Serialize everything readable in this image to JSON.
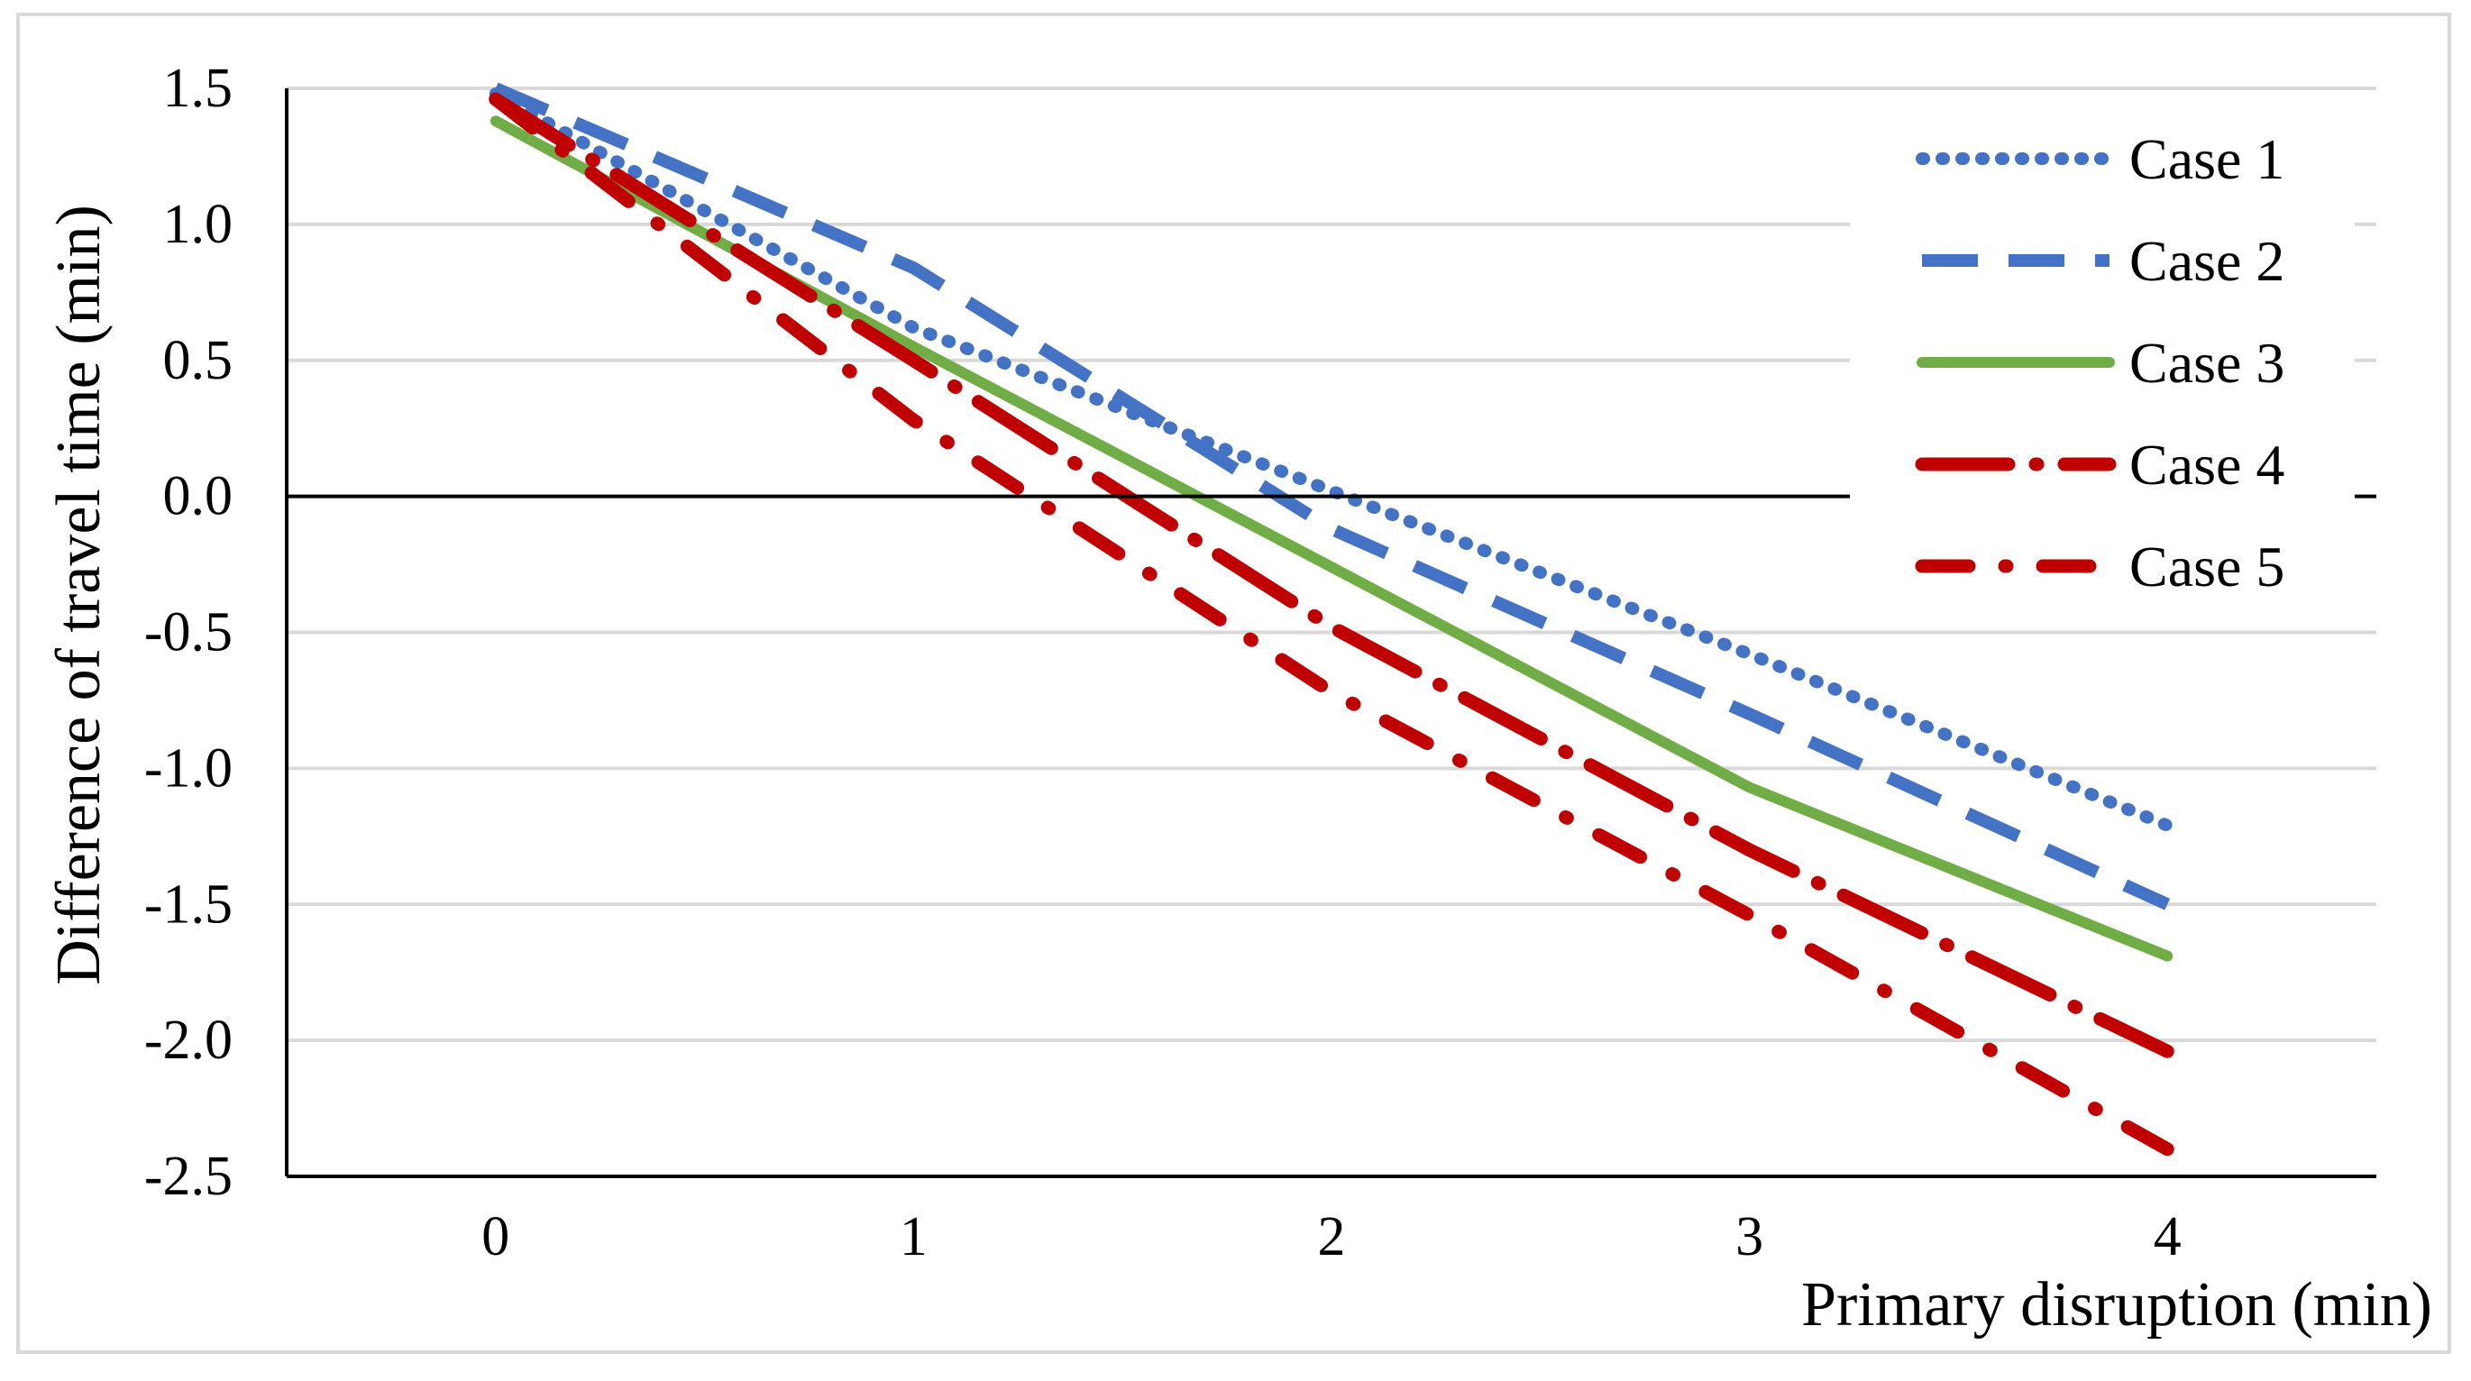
{
  "chart_data": {
    "type": "line",
    "title": "",
    "xlabel": "Primary disruption (min)",
    "ylabel": "Difference of travel time (min)",
    "x": [
      0,
      1,
      2,
      3,
      4
    ],
    "x_tick_labels": [
      "0",
      "1",
      "2",
      "3",
      "4"
    ],
    "ylim": [
      -2.5,
      1.5
    ],
    "y_ticks": [
      1.5,
      1.0,
      0.5,
      0.0,
      -0.5,
      -1.0,
      -1.5,
      -2.0,
      -2.5
    ],
    "y_tick_labels": [
      "1.5",
      "1.0",
      "0.5",
      "0.0",
      "-0.5",
      "-1.0",
      "-1.5",
      "-2.0",
      "-2.5"
    ],
    "grid": true,
    "legend_position": "top-right",
    "series": [
      {
        "name": "Case 1",
        "values": [
          1.48,
          0.62,
          0.02,
          -0.58,
          -1.21
        ],
        "color": "#4472c4",
        "dash": "dotted"
      },
      {
        "name": "Case 2",
        "values": [
          1.5,
          0.84,
          -0.12,
          -0.8,
          -1.5
        ],
        "color": "#4472c4",
        "dash": "dashed"
      },
      {
        "name": "Case 3",
        "values": [
          1.38,
          0.55,
          -0.26,
          -1.07,
          -1.69
        ],
        "color": "#70ad47",
        "dash": "solid"
      },
      {
        "name": "Case 4",
        "values": [
          1.46,
          0.5,
          -0.48,
          -1.3,
          -2.04
        ],
        "color": "#c00000",
        "dash": "long-dash-dot"
      },
      {
        "name": "Case 5",
        "values": [
          1.46,
          0.28,
          -0.72,
          -1.54,
          -2.4
        ],
        "color": "#c00000",
        "dash": "dash-dot"
      }
    ]
  }
}
